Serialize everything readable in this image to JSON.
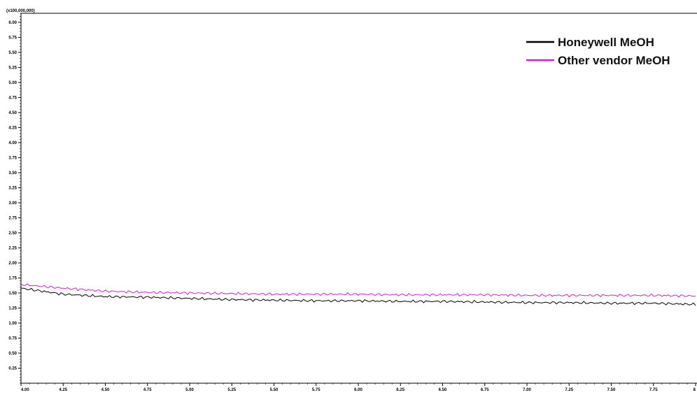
{
  "chart_data": {
    "type": "line",
    "title": "",
    "xlabel": "",
    "ylabel": "",
    "y_scale_label": "(x100,000,000)",
    "xlim": [
      4.0,
      8.0
    ],
    "ylim": [
      0.0,
      6.15
    ],
    "x_ticks": [
      4.0,
      4.25,
      4.5,
      4.75,
      5.0,
      5.25,
      5.5,
      5.75,
      6.0,
      6.25,
      6.5,
      6.75,
      7.0,
      7.25,
      7.5,
      7.75,
      8.0
    ],
    "x_tick_labels": [
      "4.00",
      "4.25",
      "4.50",
      "4.75",
      "5.00",
      "5.25",
      "5.50",
      "5.75",
      "6.00",
      "6.25",
      "6.50",
      "6.75",
      "7.00",
      "7.25",
      "7.50",
      "7.75",
      "8"
    ],
    "y_ticks": [
      0.25,
      0.5,
      0.75,
      1.0,
      1.25,
      1.5,
      1.75,
      2.0,
      2.25,
      2.5,
      2.75,
      3.0,
      3.25,
      3.5,
      3.75,
      4.0,
      4.25,
      4.5,
      4.75,
      5.0,
      5.25,
      5.5,
      5.75,
      6.0
    ],
    "y_tick_labels": [
      "0.25",
      "0.50",
      "0.75",
      "1.00",
      "1.25",
      "1.50",
      "1.75",
      "2.00",
      "2.25",
      "2.50",
      "2.75",
      "3.00",
      "3.25",
      "3.50",
      "3.75",
      "4.00",
      "4.25",
      "4.50",
      "4.75",
      "5.00",
      "5.25",
      "5.50",
      "5.75",
      "6.00"
    ],
    "grid": false,
    "legend_position": "top-right",
    "series": [
      {
        "name": "Honeywell MeOH",
        "color": "#000000",
        "x": [
          4.0,
          4.25,
          4.5,
          4.75,
          5.0,
          5.25,
          5.5,
          5.75,
          6.0,
          6.25,
          6.5,
          6.75,
          7.0,
          7.25,
          7.5,
          7.75,
          8.0
        ],
        "y": [
          1.58,
          1.48,
          1.44,
          1.43,
          1.41,
          1.39,
          1.38,
          1.37,
          1.37,
          1.36,
          1.36,
          1.35,
          1.34,
          1.34,
          1.33,
          1.33,
          1.31
        ]
      },
      {
        "name": "Other vendor MeOH",
        "color": "#cc22cc",
        "x": [
          4.0,
          4.25,
          4.5,
          4.75,
          5.0,
          5.25,
          5.5,
          5.75,
          6.0,
          6.25,
          6.5,
          6.75,
          7.0,
          7.25,
          7.5,
          7.75,
          8.0
        ],
        "y": [
          1.64,
          1.58,
          1.53,
          1.51,
          1.5,
          1.49,
          1.48,
          1.48,
          1.48,
          1.47,
          1.47,
          1.47,
          1.46,
          1.46,
          1.46,
          1.46,
          1.45
        ]
      }
    ]
  }
}
